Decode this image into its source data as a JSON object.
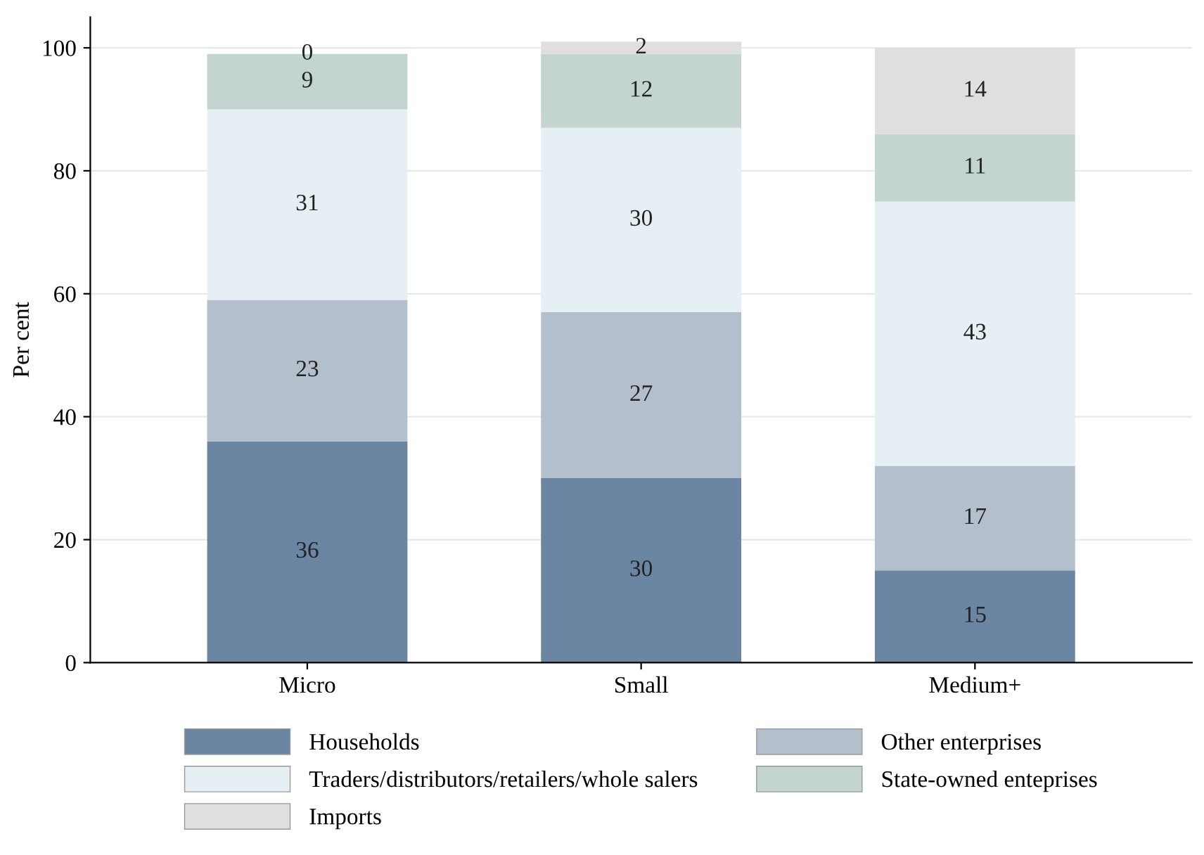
{
  "chart_data": {
    "type": "bar",
    "stacked": true,
    "ylabel": "Per cent",
    "categories": [
      "Micro",
      "Small",
      "Medium+"
    ],
    "series": [
      {
        "name": "Households",
        "color": "#6a86a3",
        "values": [
          36,
          30,
          15
        ]
      },
      {
        "name": "Other enterprises",
        "color": "#b3bfcc",
        "values": [
          23,
          27,
          17
        ]
      },
      {
        "name": "Traders/distributors/retailers/whole salers",
        "color": "#e6eff4",
        "values": [
          31,
          30,
          43
        ]
      },
      {
        "name": "State-owned enteprises",
        "color": "#c3d5cf",
        "values": [
          9,
          12,
          11
        ]
      },
      {
        "name": "Imports",
        "color": "#dfdfdf",
        "values": [
          0,
          2,
          14
        ]
      }
    ],
    "ylim": [
      0,
      105
    ],
    "yticks": [
      0,
      20,
      40,
      60,
      80,
      100
    ],
    "grid": "y",
    "legend": "bottom",
    "data_labels": true
  }
}
